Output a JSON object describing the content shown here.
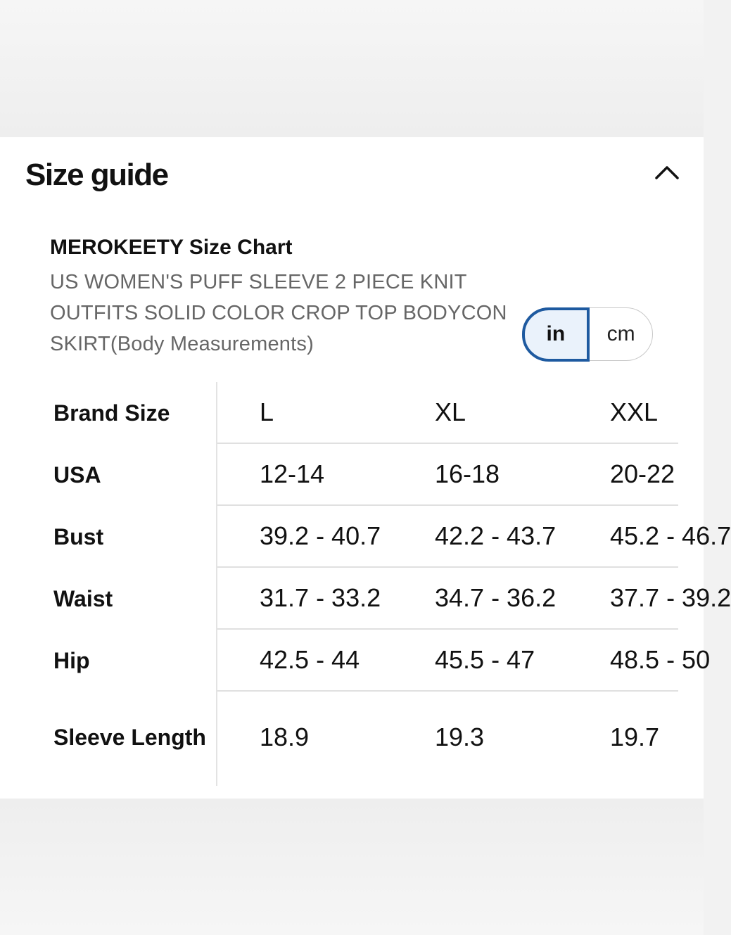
{
  "size_guide": {
    "title": "Size guide",
    "collapse_icon": "chevron-up-icon"
  },
  "chart": {
    "title": "MEROKEETY Size Chart",
    "subtitle": "US WOMEN'S PUFF SLEEVE 2 PIECE KNIT OUTFITS SOLID COLOR CROP TOP BODYCON SKIRT(Body Measurements)"
  },
  "unit_toggle": {
    "options": [
      "in",
      "cm"
    ],
    "selected": "in"
  },
  "table": {
    "rows": [
      {
        "label": "Brand Size",
        "values": [
          "L",
          "XL",
          "XXL"
        ]
      },
      {
        "label": "USA",
        "values": [
          "12-14",
          "16-18",
          "20-22"
        ]
      },
      {
        "label": "Bust",
        "values": [
          "39.2 - 40.7",
          "42.2 - 43.7",
          "45.2 - 46.7"
        ]
      },
      {
        "label": "Waist",
        "values": [
          "31.7 - 33.2",
          "34.7 - 36.2",
          "37.7 - 39.2"
        ]
      },
      {
        "label": "Hip",
        "values": [
          "42.5 - 44",
          "45.5 - 47",
          "48.5 - 50"
        ]
      },
      {
        "label": "Sleeve Length",
        "values": [
          "18.9",
          "19.3",
          "19.7"
        ]
      }
    ]
  },
  "colors": {
    "accent": "#1e5aa0",
    "accent_bg": "#eaf2fb",
    "subtitle_text": "#666666",
    "divider": "#e0e0e0"
  }
}
